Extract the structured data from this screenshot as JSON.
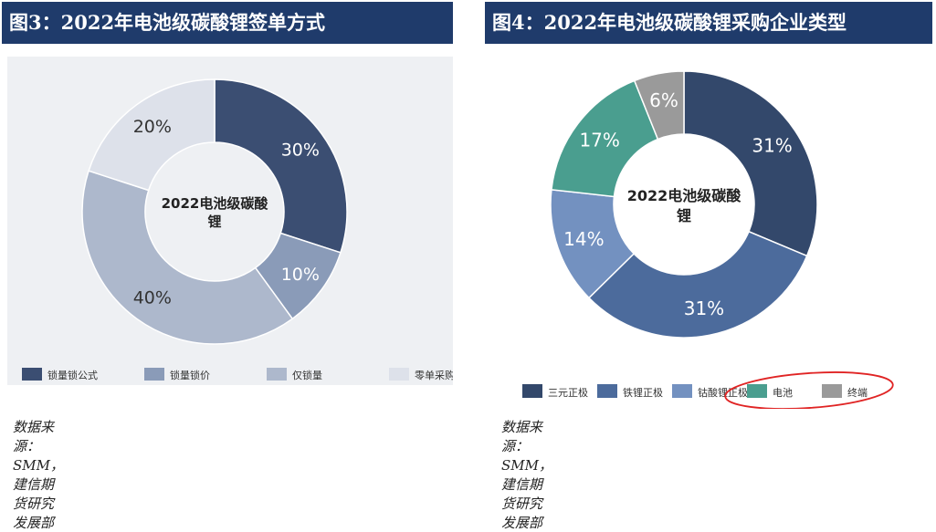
{
  "panels": [
    {
      "title": "图3：2022年电池级碳酸锂签单方式",
      "source": "数据来源：SMM，建信期货研究发展部",
      "center_label": [
        "2022电池级碳酸",
        "锂"
      ]
    },
    {
      "title": "图4：2022年电池级碳酸锂采购企业类型",
      "source": "数据来源：SMM，建信期货研究发展部",
      "center_label": [
        "2022电池级碳酸",
        "锂"
      ]
    }
  ],
  "chart_data": [
    {
      "type": "pie",
      "donut": true,
      "categories": [
        "锁量锁公式",
        "锁量锁价",
        "仅锁量",
        "零单采购"
      ],
      "values": [
        30,
        10,
        40,
        20
      ],
      "value_labels": [
        "30%",
        "10%",
        "40%",
        "20%"
      ],
      "colors": [
        "#3b4e72",
        "#8a9bb8",
        "#adb8cc",
        "#dde1ea"
      ],
      "label_colors": [
        "#ffffff",
        "#ffffff",
        "#333333",
        "#333333"
      ],
      "legend_position": "bottom",
      "background": "#eef0f3"
    },
    {
      "type": "pie",
      "donut": true,
      "categories": [
        "三元正极",
        "铁锂正极",
        "钴酸锂正极",
        "电池",
        "终端"
      ],
      "values": [
        31,
        31,
        14,
        17,
        6
      ],
      "value_labels": [
        "31%",
        "31%",
        "14%",
        "17%",
        "6%"
      ],
      "colors": [
        "#33486b",
        "#4c6b9c",
        "#7391c0",
        "#4a9e8f",
        "#9a9a9a"
      ],
      "label_colors": [
        "#ffffff",
        "#ffffff",
        "#ffffff",
        "#ffffff",
        "#ffffff"
      ],
      "legend_position": "bottom",
      "background": "#ffffff",
      "annotation": "red-ellipse-around-电池-终端"
    }
  ]
}
